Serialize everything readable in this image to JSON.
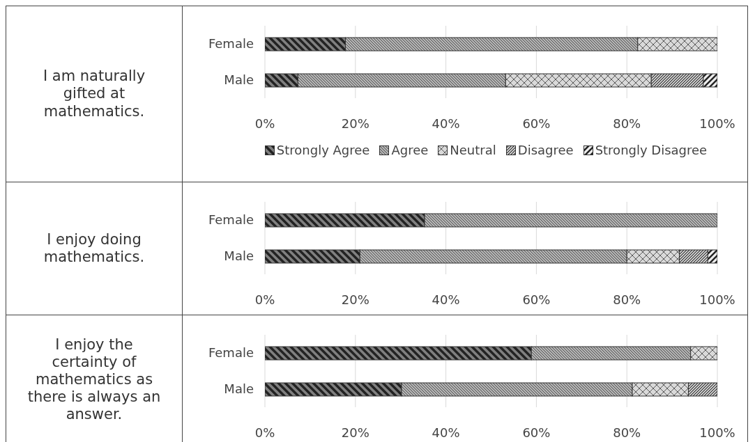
{
  "chart_data": [
    {
      "type": "bar",
      "orientation": "horizontal",
      "stacked": true,
      "title": "I am naturally gifted at mathematics.",
      "categories": [
        "Female",
        "Male"
      ],
      "series": [
        {
          "name": "Strongly Agree",
          "color": "#808080",
          "values": [
            17.8,
            7.3
          ]
        },
        {
          "name": "Agree",
          "color": "#b3b3b3",
          "values": [
            64.6,
            45.9
          ]
        },
        {
          "name": "Neutral",
          "color": "#d9d9d9",
          "values": [
            17.6,
            32.2
          ]
        },
        {
          "name": "Disagree",
          "color": "#e0e0e0",
          "values": [
            null,
            11.5
          ]
        },
        {
          "name": "Strongly Disagree",
          "color": "#eeeeee",
          "values": [
            null,
            3.1
          ]
        }
      ],
      "xlim": [
        0,
        100
      ],
      "xticks": [
        {
          "value": 0,
          "label": "0%"
        },
        {
          "value": 20,
          "label": "20%"
        },
        {
          "value": 40,
          "label": "40%"
        },
        {
          "value": 60,
          "label": "60%"
        },
        {
          "value": 80,
          "label": "80%"
        },
        {
          "value": 100,
          "label": "100%"
        }
      ],
      "grid": "x",
      "legend": "bottom"
    },
    {
      "type": "bar",
      "orientation": "horizontal",
      "stacked": true,
      "title": "I enjoy doing mathematics.",
      "categories": [
        "Female",
        "Male"
      ],
      "series": [
        {
          "color": "#808080",
          "values": [
            35.3,
            21.0
          ]
        },
        {
          "color": "#b3b3b3",
          "values": [
            64.7,
            59.0
          ]
        },
        {
          "color": "#d9d9d9",
          "values": [
            null,
            11.6
          ]
        },
        {
          "color": "#e0e0e0",
          "values": [
            null,
            6.3
          ]
        },
        {
          "color": "#eeeeee",
          "values": [
            null,
            2.1
          ]
        }
      ],
      "xlim": [
        0,
        100
      ],
      "xticks": [
        {
          "value": 0,
          "label": "0%"
        },
        {
          "value": 20,
          "label": "20%"
        },
        {
          "value": 40,
          "label": "40%"
        },
        {
          "value": 60,
          "label": "60%"
        },
        {
          "value": 80,
          "label": "80%"
        },
        {
          "value": 100,
          "label": "100%"
        }
      ],
      "grid": "x"
    },
    {
      "type": "bar",
      "orientation": "horizontal",
      "stacked": true,
      "title": "I enjoy the certainty of mathematics as there is always an answer.",
      "categories": [
        "Female",
        "Male"
      ],
      "series": [
        {
          "color": "#808080",
          "values": [
            58.9,
            30.2
          ]
        },
        {
          "color": "#b3b3b3",
          "values": [
            35.2,
            51.0
          ]
        },
        {
          "color": "#d9d9d9",
          "values": [
            5.9,
            12.4
          ]
        },
        {
          "color": "#e0e0e0",
          "values": [
            null,
            6.4
          ]
        }
      ],
      "xlim": [
        0,
        100
      ],
      "xticks": [
        {
          "value": 0,
          "label": "0%"
        },
        {
          "value": 20,
          "label": "20%"
        },
        {
          "value": 40,
          "label": "40%"
        },
        {
          "value": 60,
          "label": "60%"
        },
        {
          "value": 80,
          "label": "80%"
        },
        {
          "value": 100,
          "label": "100%"
        }
      ],
      "grid": "x"
    }
  ]
}
